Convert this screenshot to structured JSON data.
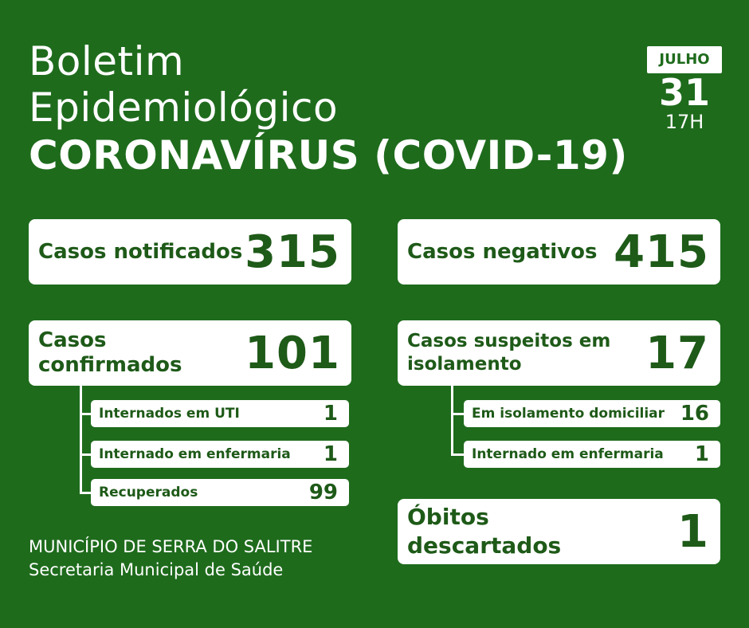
{
  "header": {
    "line1": "Boletim",
    "line2": "Epidemiológico",
    "line3": "CORONAVÍRUS (COVID-19)"
  },
  "date": {
    "month": "JULHO",
    "day": "31",
    "hour": "17H"
  },
  "left": {
    "notificados": {
      "label": "Casos notificados",
      "value": "315"
    },
    "confirmados": {
      "label": "Casos confirmados",
      "value": "101"
    },
    "sub": [
      {
        "label": "Internados em UTI",
        "value": "1"
      },
      {
        "label": "Internado em enfermaria",
        "value": "1"
      },
      {
        "label": "Recuperados",
        "value": "99"
      }
    ]
  },
  "right": {
    "negativos": {
      "label": "Casos negativos",
      "value": "415"
    },
    "suspeitos": {
      "label_line1": "Casos suspeitos em",
      "label_line2": "isolamento",
      "value": "17"
    },
    "sub": [
      {
        "label": "Em isolamento domiciliar",
        "value": "16"
      },
      {
        "label": "Internado em enfermaria",
        "value": "1"
      }
    ],
    "obitos": {
      "label_line1": "Óbitos",
      "label_line2": "descartados",
      "value": "1"
    }
  },
  "footer": {
    "line1": "MUNICÍPIO DE SERRA DO SALITRE",
    "line2": "Secretaria Municipal de Saúde"
  },
  "colors": {
    "background": "#1e6b1c",
    "card": "#ffffff",
    "text_dark": "#1e5a18"
  }
}
